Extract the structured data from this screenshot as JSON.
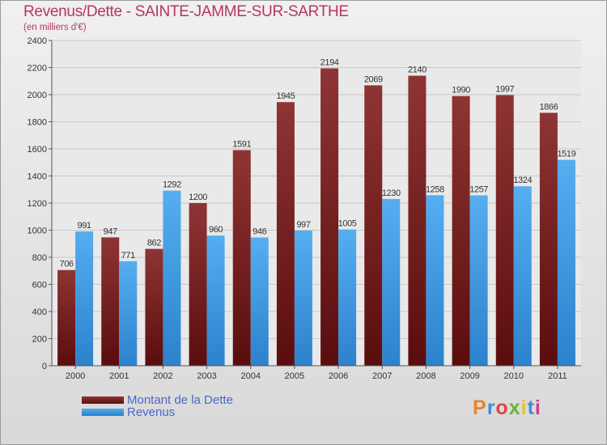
{
  "title": "Revenus/Dette - SAINTE-JAMME-SUR-SARTHE",
  "subtitle": "(en milliers d'€)",
  "logo": {
    "text": "Proxiti",
    "colors": [
      "#e8862a",
      "#3a8fd6",
      "#e04343",
      "#6bb33a",
      "#e8c22a",
      "#3a8fd6",
      "#d43a8a"
    ]
  },
  "colors": {
    "dette": "#8b2a2a",
    "dette_dark": "#5a0f0f",
    "revenus": "#4aa3e6",
    "revenus_dark": "#2a7fc8",
    "grid": "#c8c8c8",
    "axis_text": "#333333",
    "title": "#b5375c",
    "legend_text": "#4a66c8"
  },
  "chart_data": {
    "type": "bar",
    "title": "Revenus/Dette - SAINTE-JAMME-SUR-SARTHE",
    "subtitle": "(en milliers d'€)",
    "xlabel": "",
    "ylabel": "",
    "ylim": [
      0,
      2400
    ],
    "yticks": [
      0,
      200,
      400,
      600,
      800,
      1000,
      1200,
      1400,
      1600,
      1800,
      2000,
      2200,
      2400
    ],
    "grid": true,
    "legend": "bottom-left",
    "categories": [
      "2000",
      "2001",
      "2002",
      "2003",
      "2004",
      "2005",
      "2006",
      "2007",
      "2008",
      "2009",
      "2010",
      "2011"
    ],
    "series": [
      {
        "name": "Montant de la Dette",
        "values": [
          706,
          947,
          862,
          1200,
          1591,
          1945,
          2194,
          2069,
          2140,
          1990,
          1997,
          1866
        ]
      },
      {
        "name": "Revenus",
        "values": [
          991,
          771,
          1292,
          960,
          946,
          997,
          1005,
          1230,
          1258,
          1257,
          1324,
          1519
        ]
      }
    ]
  }
}
